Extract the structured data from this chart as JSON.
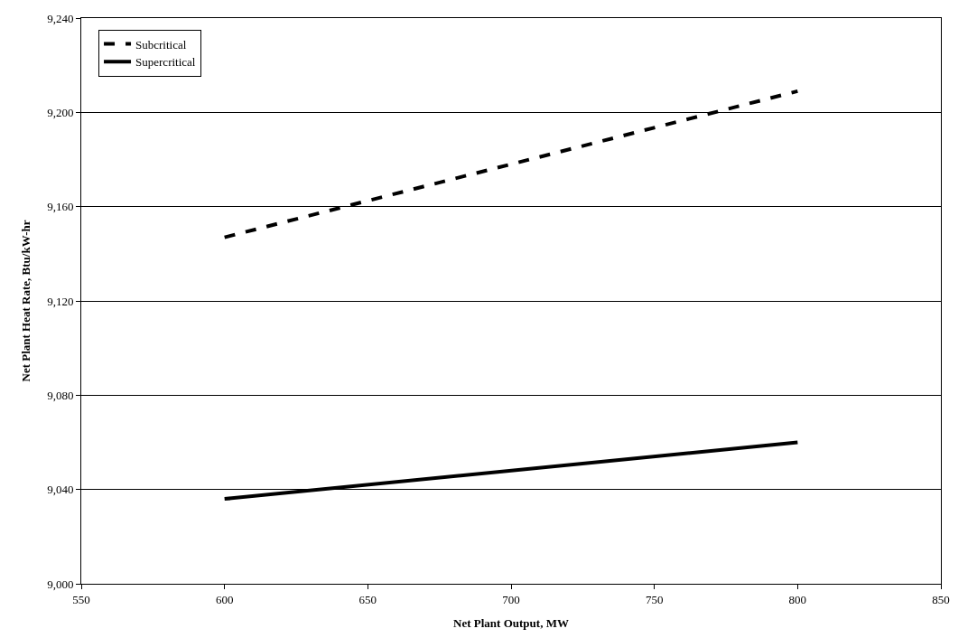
{
  "chart_data": {
    "type": "line",
    "xlabel": "Net Plant Output, MW",
    "ylabel": "Net Plant Heat Rate, Btu/kW-hr",
    "x": [
      600,
      800
    ],
    "series": [
      {
        "name": "Subcritical",
        "color": "#000000",
        "line_style": "dashed",
        "values": [
          9147,
          9209
        ]
      },
      {
        "name": "Supercritical",
        "color": "#000000",
        "line_style": "solid",
        "values": [
          9036,
          9060
        ]
      }
    ],
    "xlim": [
      550,
      850
    ],
    "xticks": [
      550,
      600,
      650,
      700,
      750,
      800,
      850
    ],
    "ylim": [
      9000,
      9240
    ],
    "yticks": [
      {
        "value": 9000,
        "label": "9,000"
      },
      {
        "value": 9040,
        "label": "9,040"
      },
      {
        "value": 9080,
        "label": "9,080"
      },
      {
        "value": 9120,
        "label": "9,120"
      },
      {
        "value": 9160,
        "label": "9,160"
      },
      {
        "value": 9200,
        "label": "9,200"
      },
      {
        "value": 9240,
        "label": "9,240"
      }
    ],
    "grid": "y",
    "legend": "top left",
    "marker": "none"
  }
}
